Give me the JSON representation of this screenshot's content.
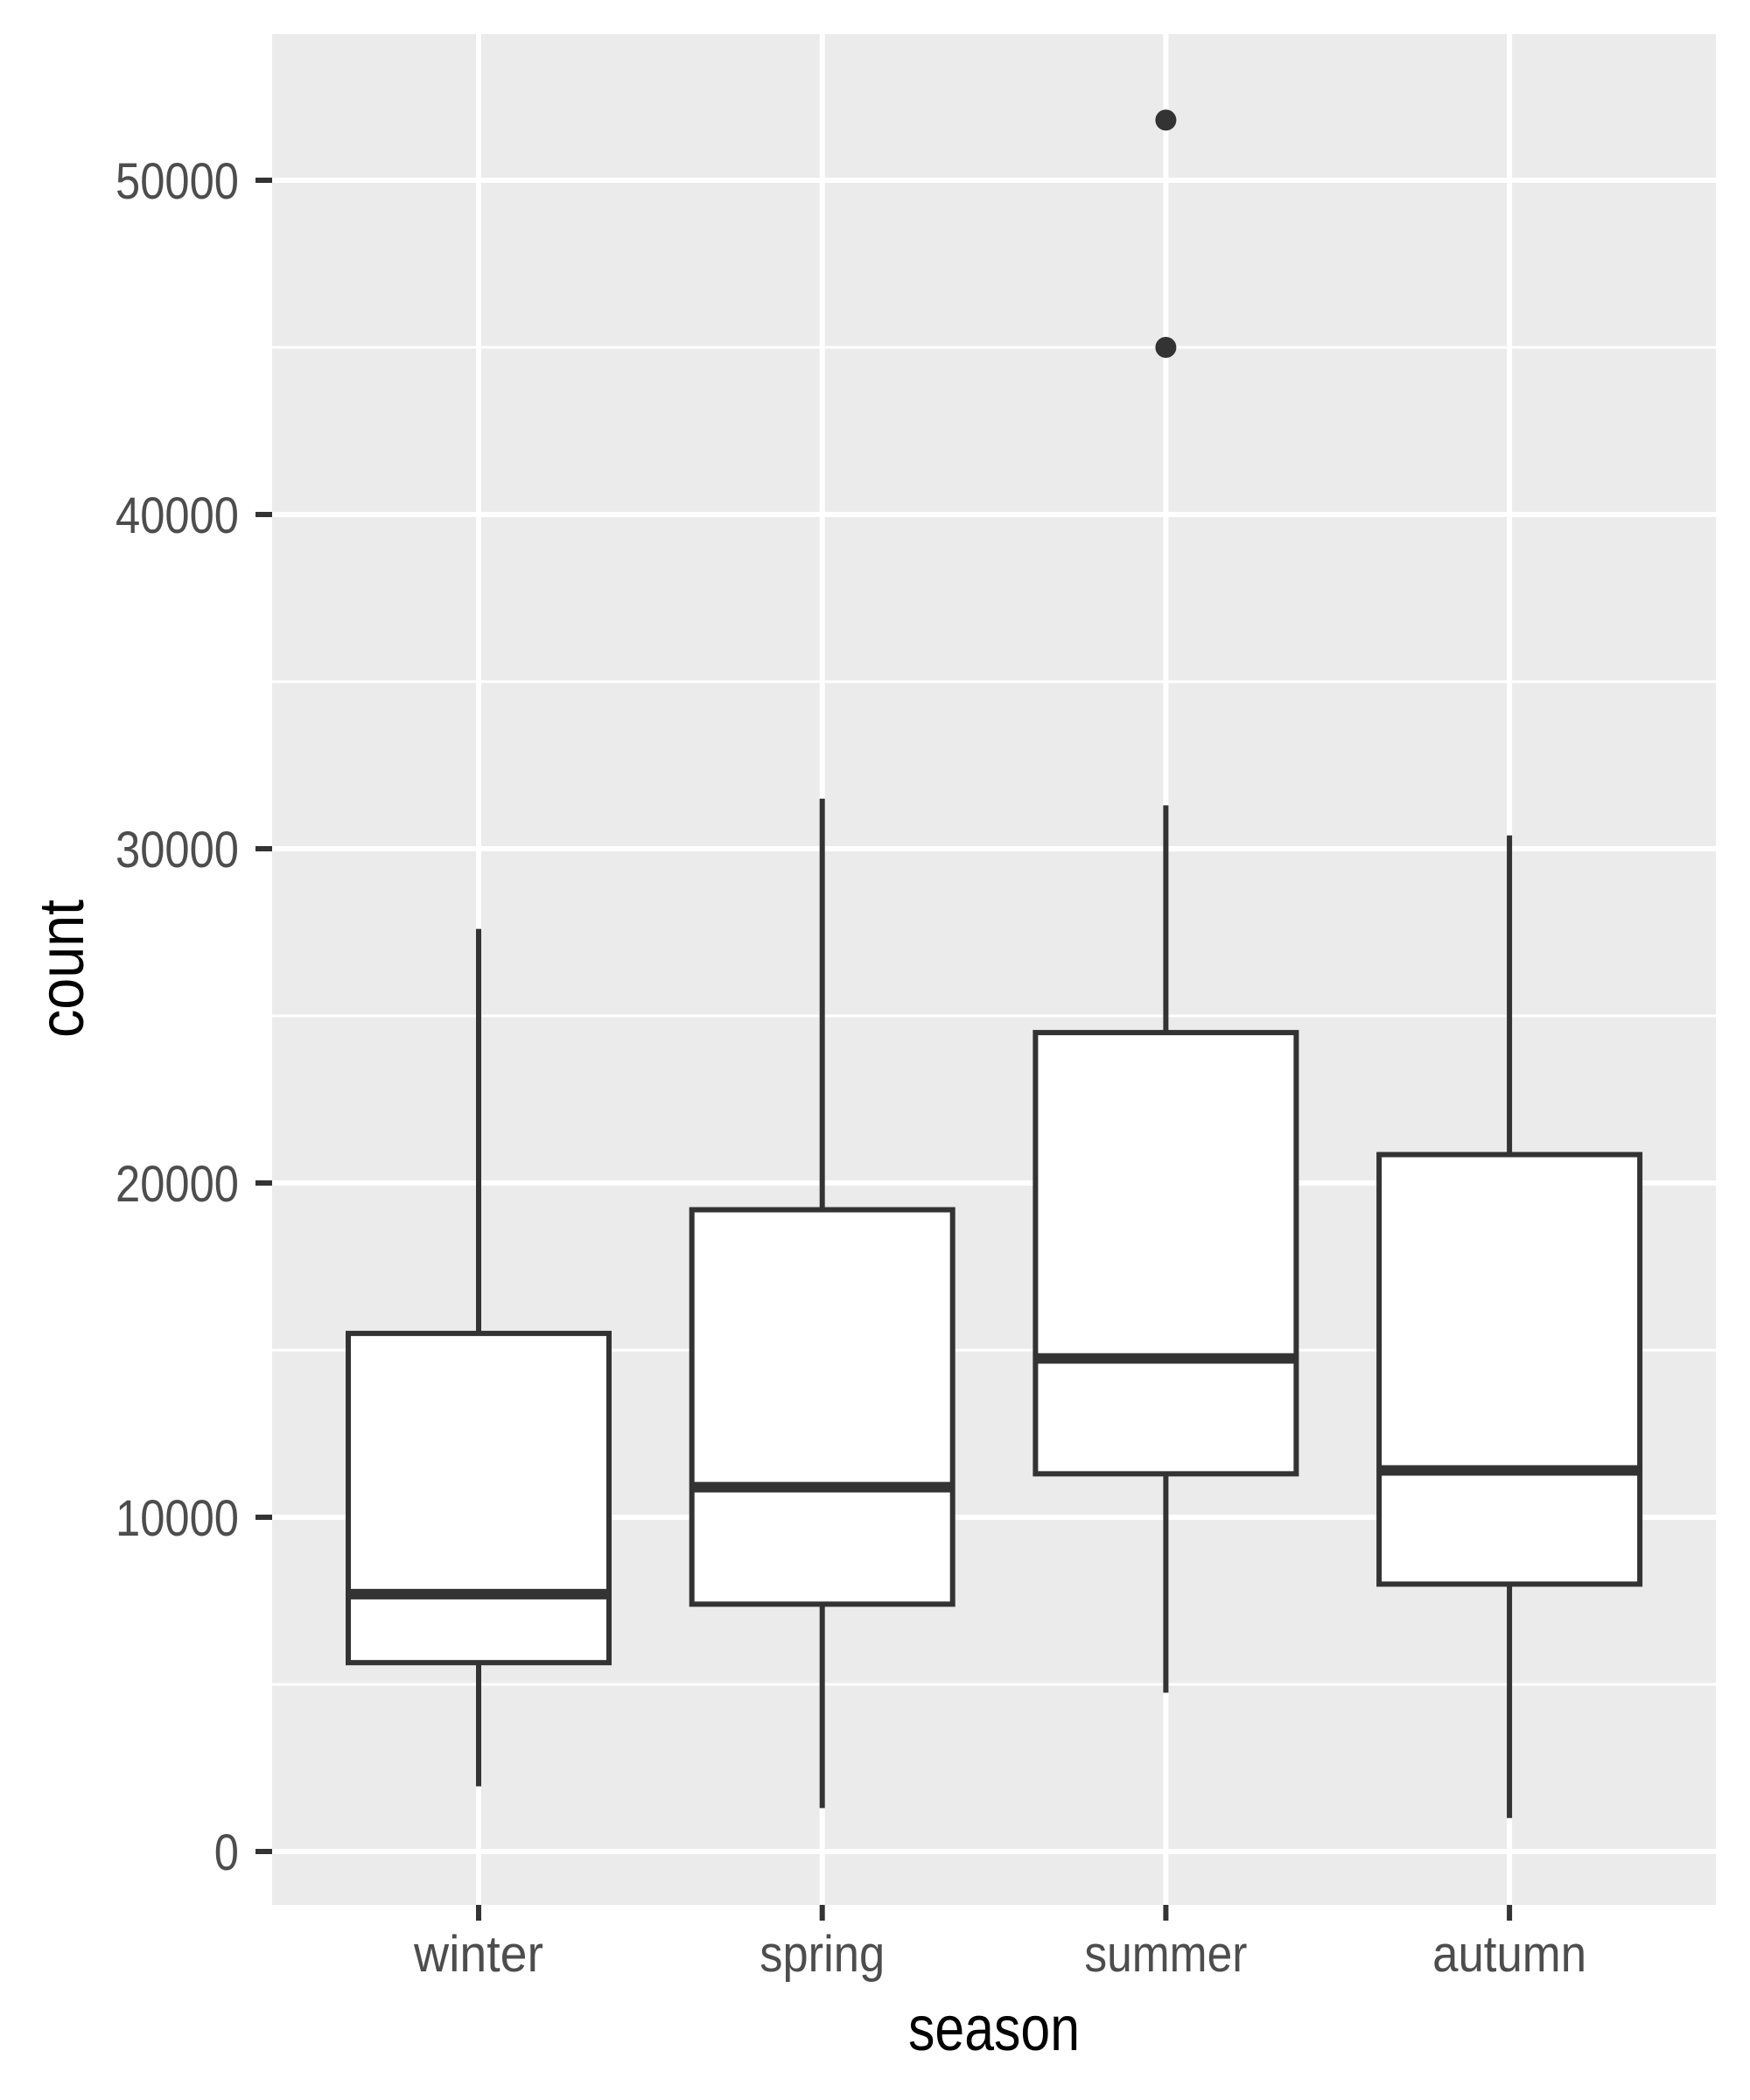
{
  "chart_data": {
    "type": "boxplot",
    "title": "",
    "xlabel": "season",
    "ylabel": "count",
    "categories": [
      "winter",
      "spring",
      "summer",
      "autumn"
    ],
    "y_ticks": [
      0,
      10000,
      20000,
      30000,
      40000,
      50000
    ],
    "y_tick_labels": [
      "0",
      "10000",
      "20000",
      "30000",
      "40000",
      "50000"
    ],
    "ylim": [
      -1600,
      54000
    ],
    "grid": true,
    "legend": null,
    "series": [
      {
        "category": "winter",
        "whisker_low": 1950,
        "q1": 5650,
        "median": 7700,
        "q3": 15500,
        "whisker_high": 27600,
        "outliers": []
      },
      {
        "category": "spring",
        "whisker_low": 1300,
        "q1": 7400,
        "median": 10900,
        "q3": 19200,
        "whisker_high": 31500,
        "outliers": []
      },
      {
        "category": "summer",
        "whisker_low": 4750,
        "q1": 11300,
        "median": 14750,
        "q3": 24500,
        "whisker_high": 31300,
        "outliers": [
          45000,
          51800
        ]
      },
      {
        "category": "autumn",
        "whisker_low": 1000,
        "q1": 8000,
        "median": 11400,
        "q3": 20850,
        "whisker_high": 30400,
        "outliers": []
      }
    ]
  },
  "colors": {
    "panel_background": "#EBEBEB",
    "gridline": "#FFFFFF",
    "box_fill": "#FFFFFF",
    "box_stroke": "#333333",
    "tick_label": "#4D4D4D",
    "axis_title": "#000000"
  }
}
